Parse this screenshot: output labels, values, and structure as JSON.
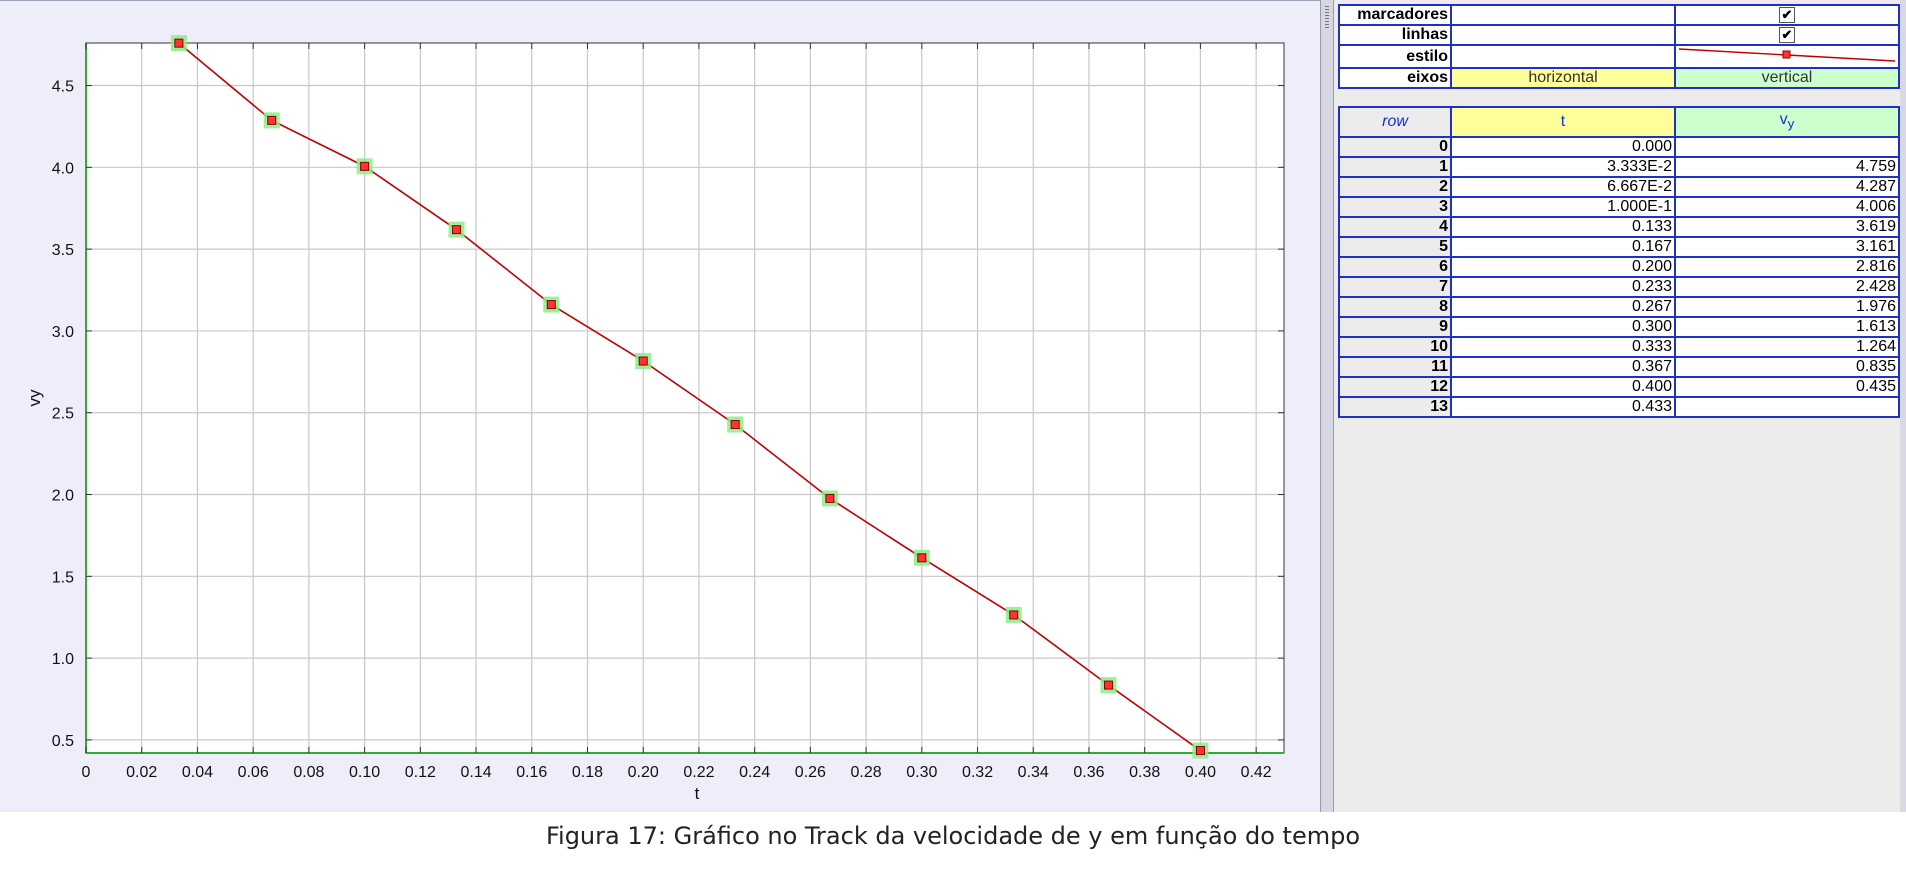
{
  "chart_data": {
    "type": "line",
    "xlabel": "t",
    "ylabel": "vy",
    "xlim": [
      0,
      0.43
    ],
    "ylim": [
      0.42,
      4.76
    ],
    "x_ticks": [
      0,
      0.02,
      0.04,
      0.06,
      0.08,
      0.1,
      0.12,
      0.14,
      0.16,
      0.18,
      0.2,
      0.22,
      0.24,
      0.26,
      0.28,
      0.3,
      0.32,
      0.34,
      0.36,
      0.38,
      0.4,
      0.42
    ],
    "x_tick_labels": [
      "0",
      "0.02",
      "0.04",
      "0.06",
      "0.08",
      "0.10",
      "0.12",
      "0.14",
      "0.16",
      "0.18",
      "0.20",
      "0.22",
      "0.24",
      "0.26",
      "0.28",
      "0.30",
      "0.32",
      "0.34",
      "0.36",
      "0.38",
      "0.40",
      "0.42"
    ],
    "y_ticks": [
      0.5,
      1.0,
      1.5,
      2.0,
      2.5,
      3.0,
      3.5,
      4.0,
      4.5
    ],
    "y_tick_labels": [
      "0.5",
      "1.0",
      "1.5",
      "2.0",
      "2.5",
      "3.0",
      "3.5",
      "4.0",
      "4.5"
    ],
    "grid": true,
    "series": [
      {
        "x": [
          0.03333,
          0.06667,
          0.1,
          0.133,
          0.167,
          0.2,
          0.233,
          0.267,
          0.3,
          0.333,
          0.367,
          0.4
        ],
        "y": [
          4.759,
          4.287,
          4.006,
          3.619,
          3.161,
          2.816,
          2.428,
          1.976,
          1.613,
          1.264,
          0.835,
          0.435
        ],
        "line_color": "#c00000",
        "marker_color": "#ff3333",
        "highlight_color": "#88ee88"
      }
    ]
  },
  "properties": {
    "rows": [
      {
        "label": "marcadores",
        "col2": "",
        "col3_check": "✔"
      },
      {
        "label": "linhas",
        "col2": "",
        "col3_check": "✔"
      },
      {
        "label": "estilo",
        "col2": ""
      },
      {
        "label": "eixos",
        "col2": "horizontal",
        "col3": "vertical"
      }
    ]
  },
  "table": {
    "headers": {
      "row": "row",
      "t": "t",
      "v": "v",
      "v_sub": "y"
    },
    "rows": [
      {
        "row": "0",
        "t": "0.000",
        "v": ""
      },
      {
        "row": "1",
        "t": "3.333E-2",
        "v": "4.759"
      },
      {
        "row": "2",
        "t": "6.667E-2",
        "v": "4.287"
      },
      {
        "row": "3",
        "t": "1.000E-1",
        "v": "4.006"
      },
      {
        "row": "4",
        "t": "0.133",
        "v": "3.619"
      },
      {
        "row": "5",
        "t": "0.167",
        "v": "3.161"
      },
      {
        "row": "6",
        "t": "0.200",
        "v": "2.816"
      },
      {
        "row": "7",
        "t": "0.233",
        "v": "2.428"
      },
      {
        "row": "8",
        "t": "0.267",
        "v": "1.976"
      },
      {
        "row": "9",
        "t": "0.300",
        "v": "1.613"
      },
      {
        "row": "10",
        "t": "0.333",
        "v": "1.264"
      },
      {
        "row": "11",
        "t": "0.367",
        "v": "0.835"
      },
      {
        "row": "12",
        "t": "0.400",
        "v": "0.435"
      },
      {
        "row": "13",
        "t": "0.433",
        "v": ""
      }
    ]
  },
  "caption": "Figura 17: Gráfico no Track da velocidade de y em função do tempo"
}
